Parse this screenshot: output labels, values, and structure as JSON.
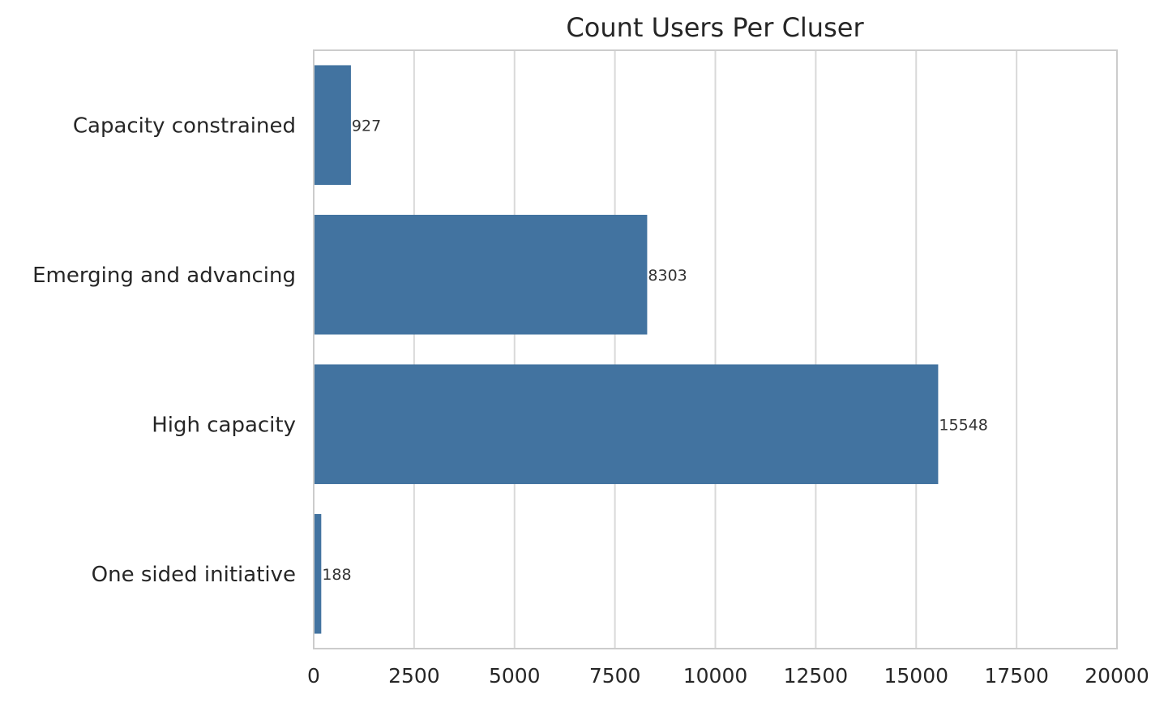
{
  "chart_data": {
    "type": "bar",
    "orientation": "horizontal",
    "title": "Count Users Per Cluser",
    "xlabel": "",
    "ylabel": "",
    "categories": [
      "Capacity constrained",
      "Emerging and advancing",
      "High capacity",
      "One sided initiative"
    ],
    "values": [
      927,
      8303,
      15548,
      188
    ],
    "data_labels": [
      "927",
      "8303",
      "15548",
      "188"
    ],
    "xlim": [
      0,
      20000
    ],
    "x_ticks": [
      0,
      2500,
      5000,
      7500,
      10000,
      12500,
      15000,
      17500,
      20000
    ],
    "x_tick_labels": [
      "0",
      "2500",
      "5000",
      "7500",
      "10000",
      "12500",
      "15000",
      "17500",
      "20000"
    ],
    "grid": "vertical",
    "legend": "none",
    "colors": {
      "bar": "#4273a0",
      "grid": "#d9d9d9",
      "frame": "#cccccc",
      "text": "#262626",
      "background": "#ffffff"
    }
  }
}
